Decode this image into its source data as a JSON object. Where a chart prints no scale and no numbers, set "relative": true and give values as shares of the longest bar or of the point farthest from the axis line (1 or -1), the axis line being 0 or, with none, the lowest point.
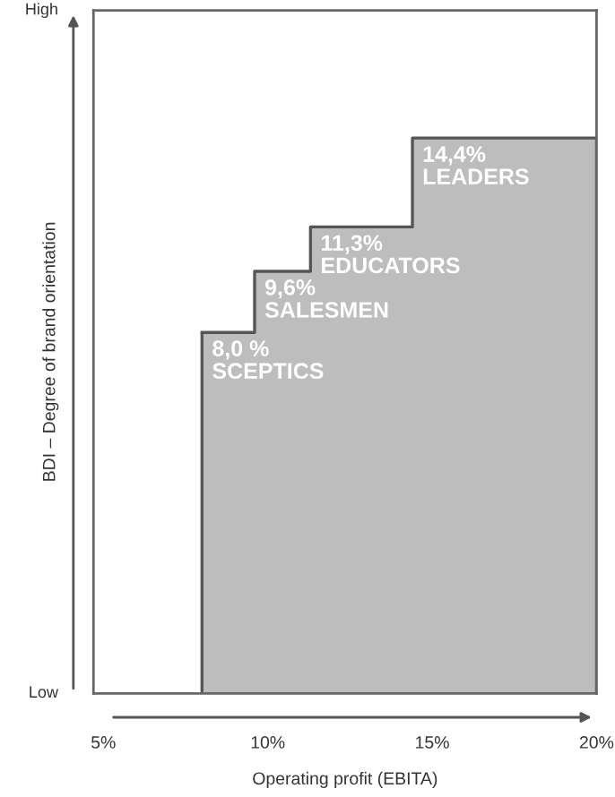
{
  "chart_data": {
    "type": "area",
    "relative": true,
    "xlabel": "Operating profit (EBITA)",
    "ylabel": "BDI – Degree of brand orientation",
    "x": [
      8.0,
      9.6,
      11.3,
      14.4,
      20
    ],
    "values": [
      0.65,
      0.76,
      0.84,
      1.0,
      1.0
    ],
    "color": "#bdbdbd",
    "xlim": [
      4.7,
      20
    ],
    "xticks": [
      {
        "value": 5,
        "label": "5%"
      },
      {
        "value": 10,
        "label": "10%"
      },
      {
        "value": 15,
        "label": "15%"
      },
      {
        "value": 20,
        "label": "20%"
      }
    ],
    "annotations": [
      "High",
      "Low",
      {
        "text": "8,0 %\nSCEPTICS",
        "x": 8.0,
        "y": 0.65
      },
      {
        "text": "9,6%\nSALESMEN",
        "x": 9.6,
        "y": 0.76
      },
      {
        "text": "11,3%\nEDUCATORS",
        "x": 11.3,
        "y": 0.84
      },
      {
        "text": "14,4%\nLEADERS",
        "x": 14.4,
        "y": 1.0
      }
    ],
    "grid": false,
    "legend": false
  }
}
